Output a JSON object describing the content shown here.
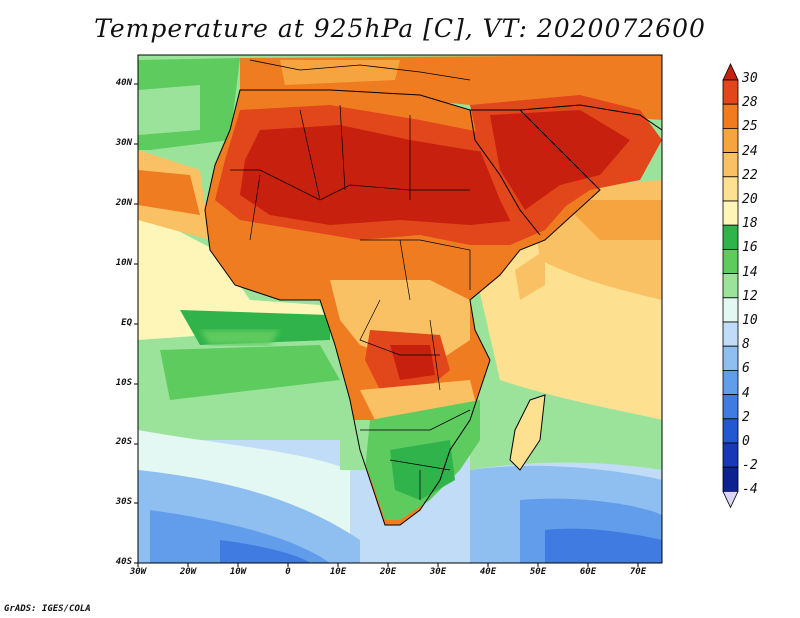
{
  "title": "Temperature at 925hPa [C], VT: 2020072600",
  "footer": "GrADS: IGES/COLA",
  "map": {
    "variable": "Temperature at 925hPa",
    "units": "C",
    "valid_time": "2020072600",
    "region": "Africa",
    "lat_labels": [
      "40N",
      "30N",
      "20N",
      "10N",
      "EQ",
      "10S",
      "20S",
      "30S",
      "40S"
    ],
    "lon_labels": [
      "30W",
      "20W",
      "10W",
      "0",
      "10E",
      "20E",
      "30E",
      "40E",
      "50E",
      "60E",
      "70E"
    ]
  },
  "colorbar": {
    "levels": [
      "30",
      "28",
      "25",
      "24",
      "22",
      "20",
      "18",
      "16",
      "14",
      "12",
      "10",
      "8",
      "6",
      "4",
      "2",
      "0",
      "-2",
      "-4"
    ],
    "colors": [
      "#c8200e",
      "#e2461b",
      "#f07c22",
      "#f6a43f",
      "#fac164",
      "#fde090",
      "#fef6b8",
      "#2fb34a",
      "#5ecb5e",
      "#9be39b",
      "#e3f8f2",
      "#c1dcf6",
      "#8fbef0",
      "#619dea",
      "#3f7be0",
      "#2458d0",
      "#1838b8",
      "#0c2290",
      "#dcd6f6"
    ]
  }
}
